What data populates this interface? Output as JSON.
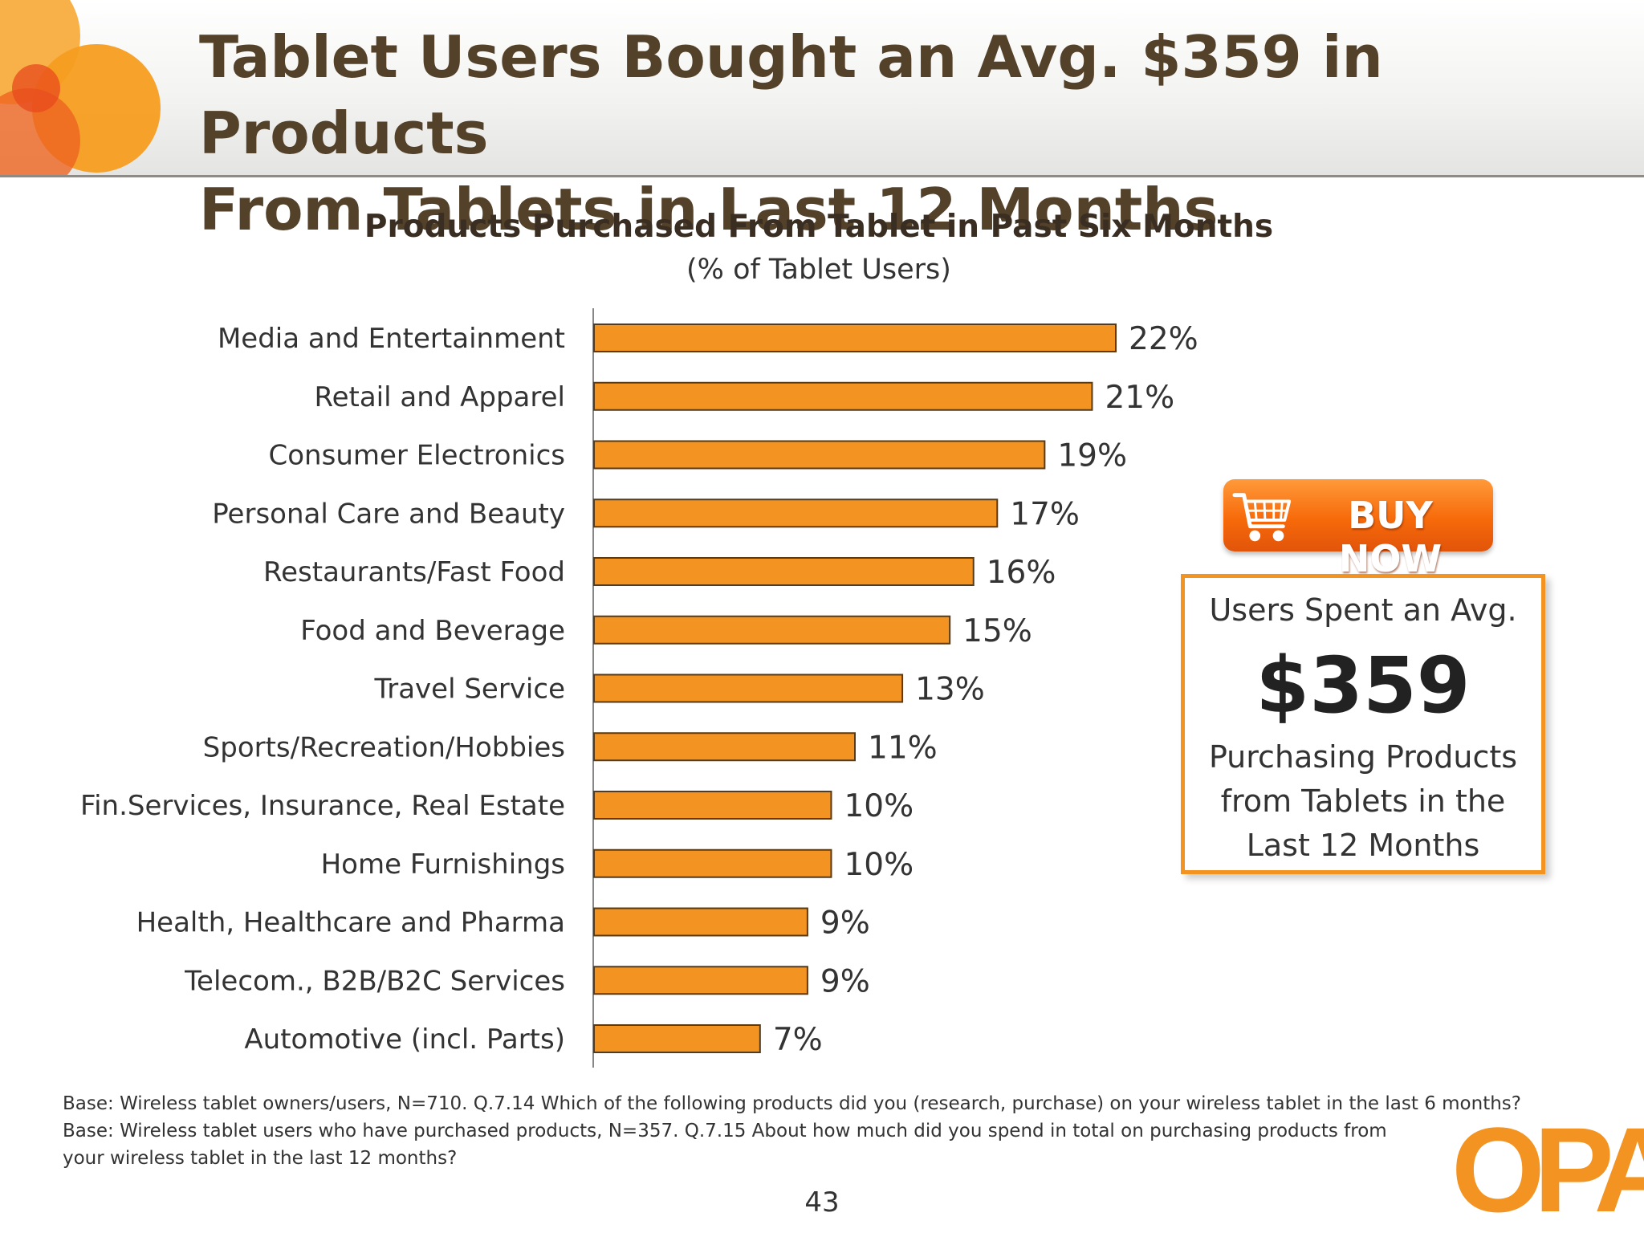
{
  "slide": {
    "title_line1": "Tablet Users Bought an Avg. $359 in Products",
    "title_line2": "From Tablets in Last 12 Months",
    "page_number": "43",
    "logo_text": "OPA",
    "accent_color": "#f39321"
  },
  "chart_data": {
    "type": "bar",
    "orientation": "horizontal",
    "title": "Products Purchased From Tablet in Past Six Months",
    "subtitle": "(% of Tablet Users)",
    "categories": [
      "Media and Entertainment",
      "Retail and Apparel",
      "Consumer Electronics",
      "Personal Care and Beauty",
      "Restaurants/Fast Food",
      "Food and Beverage",
      "Travel Service",
      "Sports/Recreation/Hobbies",
      "Fin.Services, Insurance, Real Estate",
      "Home Furnishings",
      "Health, Healthcare and Pharma",
      "Telecom., B2B/B2C Services",
      "Automotive (incl. Parts)"
    ],
    "values": [
      22,
      21,
      19,
      17,
      16,
      15,
      13,
      11,
      10,
      10,
      9,
      9,
      7
    ],
    "value_labels": [
      "22%",
      "21%",
      "19%",
      "17%",
      "16%",
      "15%",
      "13%",
      "11%",
      "10%",
      "10%",
      "9%",
      "9%",
      "7%"
    ],
    "xlim": [
      0,
      22
    ],
    "bar_color": "#f39321",
    "bar_border_color": "#5a3a14",
    "grid": false
  },
  "buy_now": {
    "label": "BUY NOW",
    "icon": "shopping-cart-icon",
    "color": "#f76a0a"
  },
  "callout": {
    "line1": "Users Spent an Avg.",
    "amount": "$359",
    "line2a": "Purchasing Products",
    "line2b": "from Tablets in the",
    "line2c": "Last 12 Months"
  },
  "footnote": {
    "line1": "Base:  Wireless tablet owners/users, N=710. Q.7.14 Which of the following products did you (research, purchase) on your wireless tablet in the last 6 months?",
    "line2": "Base: Wireless tablet users who have purchased products, N=357.  Q.7.15 About how much did you spend in total on purchasing products from",
    "line3": "your wireless tablet in the last 12 months?"
  }
}
